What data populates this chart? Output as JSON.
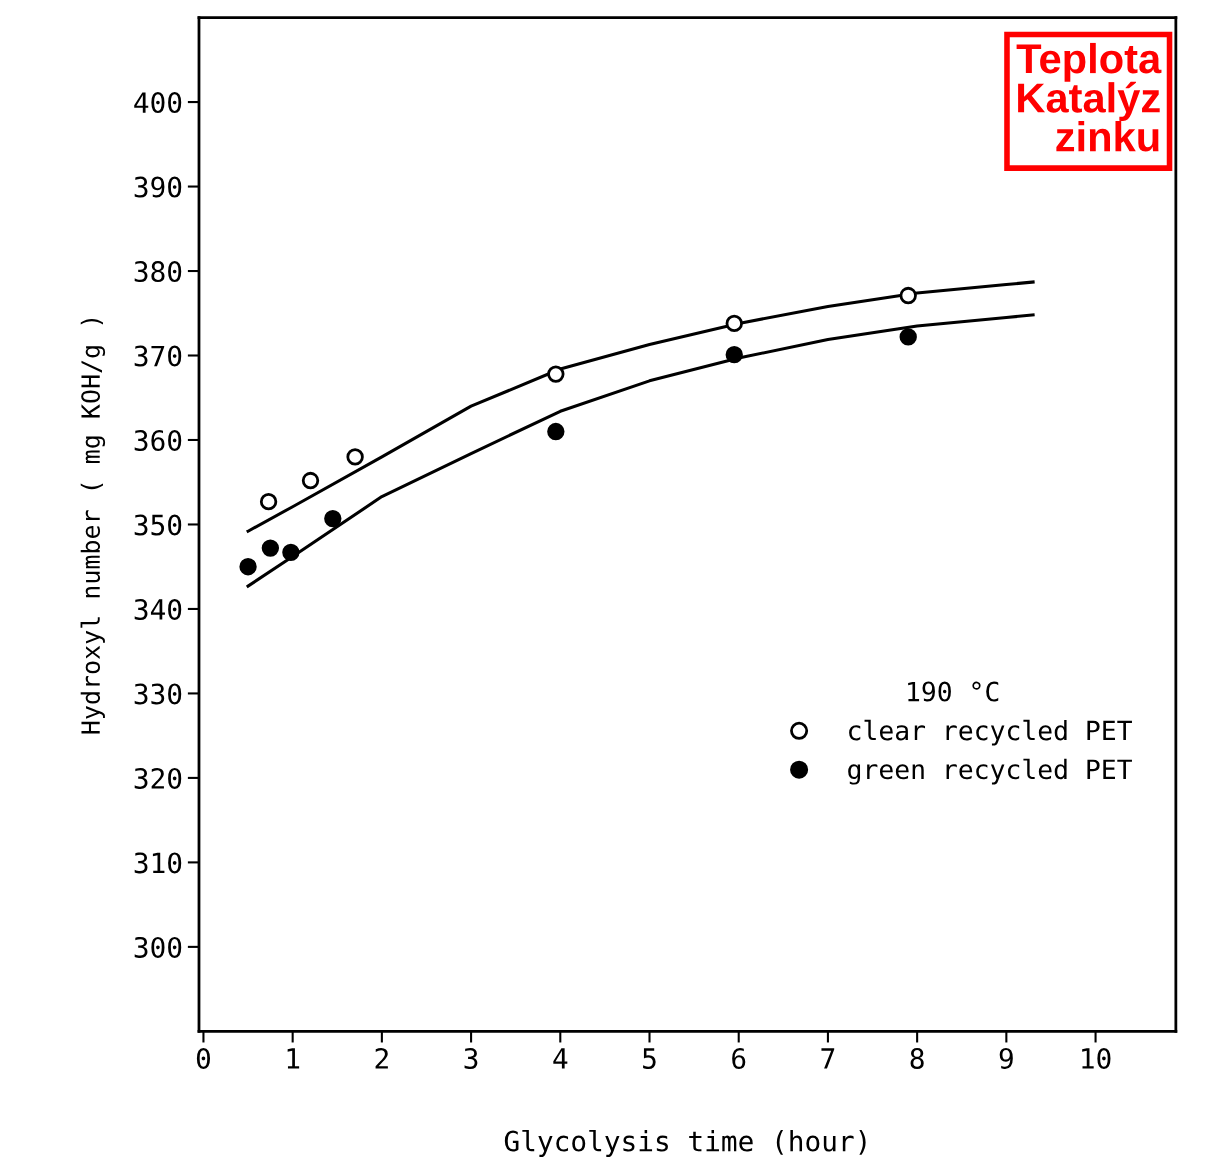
{
  "chart_data": {
    "type": "scatter",
    "xlabel": "Glycolysis time (hour)",
    "ylabel": "Hydroxyl number ( mg KOH/g )",
    "xlim": [
      -0.05,
      10.9
    ],
    "ylim": [
      290,
      410
    ],
    "xticks": [
      0,
      1,
      2,
      3,
      4,
      5,
      6,
      7,
      8,
      9,
      10
    ],
    "yticks": [
      300,
      310,
      320,
      330,
      340,
      350,
      360,
      370,
      380,
      390,
      400
    ],
    "grid": false,
    "legend": "lower right",
    "legend_title": "190 °C",
    "series": [
      {
        "name": "clear recycled PET",
        "color": "#ffffff",
        "marker": "circle",
        "x": [
          0.73,
          1.2,
          1.7,
          3.95,
          5.95,
          7.9
        ],
        "values": [
          352.7,
          355.2,
          358,
          367.8,
          373.8,
          377.1
        ]
      },
      {
        "name": "green recycled PET",
        "color": "#000000",
        "marker": "circle",
        "x": [
          0.5,
          0.75,
          0.98,
          1.45,
          3.95,
          5.95,
          7.9
        ],
        "values": [
          345,
          347.2,
          346.7,
          350.7,
          361,
          370.1,
          372.2
        ]
      },
      {
        "type": "line",
        "marker": "none",
        "color": "#000000",
        "x": [
          0.5,
          1,
          2,
          3,
          4,
          5,
          6,
          7,
          8,
          9,
          9.3
        ],
        "values": [
          349.2,
          352.1,
          358,
          364,
          368.4,
          371.3,
          373.8,
          375.8,
          377.4,
          378.4,
          378.7
        ]
      },
      {
        "type": "line",
        "marker": "none",
        "color": "#000000",
        "x": [
          0.5,
          1,
          2,
          3,
          4,
          5,
          6,
          7,
          8,
          9,
          9.3
        ],
        "values": [
          342.7,
          346.2,
          353.3,
          358.4,
          363.4,
          367,
          369.7,
          371.9,
          373.5,
          374.5,
          374.8
        ]
      }
    ],
    "annotations": [
      "Teplota\nKatalýz\nzinku"
    ]
  }
}
